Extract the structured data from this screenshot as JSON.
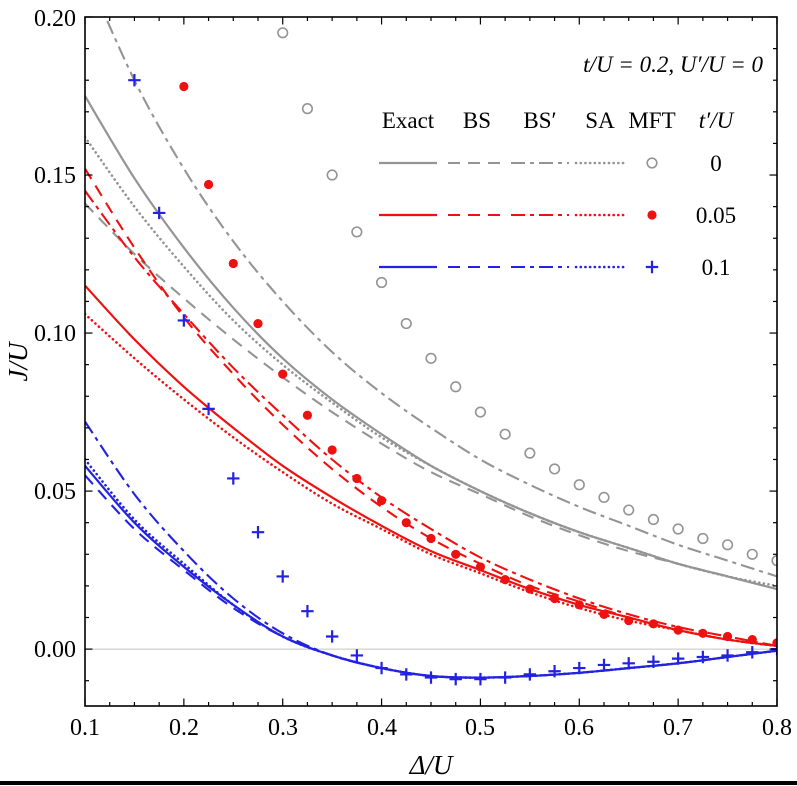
{
  "chart_data": {
    "type": "line",
    "title": "t/U = 0.2, U′/U = 0",
    "xlabel": "Δ/U",
    "ylabel": "J/U",
    "xlim": [
      0.1,
      0.8
    ],
    "ylim": [
      -0.018,
      0.2
    ],
    "xticks": [
      0.1,
      0.2,
      0.3,
      0.4,
      0.5,
      0.6,
      0.7,
      0.8
    ],
    "xticklabels": [
      "0.1",
      "0.2",
      "0.3",
      "0.4",
      "0.5",
      "0.6",
      "0.7",
      "0.8"
    ],
    "yticks": [
      0.0,
      0.05,
      0.1,
      0.15,
      0.2
    ],
    "yticklabels": [
      "0.00",
      "0.05",
      "0.10",
      "0.15",
      "0.20"
    ],
    "grid": "zero-line-only",
    "legend_position": "top-right",
    "colors": {
      "gray": "#949494",
      "red": "#ee1111",
      "blue": "#2222e0",
      "zero_line": "#c4c4c4",
      "frame": "#000000"
    },
    "x_line": [
      0.1,
      0.15,
      0.2,
      0.25,
      0.3,
      0.35,
      0.4,
      0.45,
      0.5,
      0.55,
      0.6,
      0.65,
      0.7,
      0.75,
      0.8
    ],
    "series": [
      {
        "name": "BS",
        "group": "t'/U = 0",
        "color_key": "gray",
        "style": "dashed",
        "y": [
          0.141,
          0.125,
          0.111,
          0.098,
          0.086,
          0.075,
          0.065,
          0.056,
          0.049,
          0.042,
          0.036,
          0.031,
          0.027,
          0.023,
          0.019
        ]
      },
      {
        "name": "BS'",
        "group": "t'/U = 0",
        "color_key": "gray",
        "style": "dashdot",
        "y": [
          0.215,
          0.18,
          0.152,
          0.129,
          0.11,
          0.094,
          0.081,
          0.07,
          0.06,
          0.052,
          0.045,
          0.039,
          0.033,
          0.028,
          0.023
        ]
      },
      {
        "name": "SA",
        "group": "t'/U = 0",
        "color_key": "gray",
        "style": "dotted",
        "y": [
          0.162,
          0.14,
          0.121,
          0.104,
          0.09,
          0.078,
          0.067,
          0.058,
          0.05,
          0.043,
          0.037,
          0.032,
          0.027,
          0.023,
          0.02
        ]
      },
      {
        "name": "Exact",
        "group": "t'/U = 0",
        "color_key": "gray",
        "style": "solid",
        "y": [
          0.175,
          0.149,
          0.127,
          0.108,
          0.092,
          0.079,
          0.068,
          0.058,
          0.05,
          0.043,
          0.037,
          0.032,
          0.027,
          0.023,
          0.019
        ]
      },
      {
        "name": "BS",
        "group": "t'/U = 0.05",
        "color_key": "red",
        "style": "dashed",
        "y": [
          0.152,
          0.127,
          0.105,
          0.087,
          0.071,
          0.057,
          0.045,
          0.035,
          0.027,
          0.02,
          0.015,
          0.01,
          0.006,
          0.003,
          0.001
        ]
      },
      {
        "name": "BS'",
        "group": "t'/U = 0.05",
        "color_key": "red",
        "style": "dashdot",
        "y": [
          0.145,
          0.124,
          0.106,
          0.089,
          0.074,
          0.06,
          0.048,
          0.038,
          0.029,
          0.022,
          0.016,
          0.011,
          0.007,
          0.004,
          0.001
        ]
      },
      {
        "name": "SA",
        "group": "t'/U = 0.05",
        "color_key": "red",
        "style": "dotted",
        "y": [
          0.106,
          0.092,
          0.079,
          0.067,
          0.056,
          0.046,
          0.038,
          0.03,
          0.024,
          0.018,
          0.013,
          0.009,
          0.006,
          0.003,
          0.001
        ]
      },
      {
        "name": "Exact",
        "group": "t'/U = 0.05",
        "color_key": "red",
        "style": "solid",
        "y": [
          0.115,
          0.098,
          0.083,
          0.07,
          0.058,
          0.048,
          0.039,
          0.031,
          0.025,
          0.019,
          0.014,
          0.01,
          0.006,
          0.003,
          0.001
        ]
      },
      {
        "name": "BS",
        "group": "t'/U = 0.1",
        "color_key": "blue",
        "style": "dashed",
        "y": [
          0.055,
          0.038,
          0.025,
          0.013,
          0.004,
          -0.002,
          -0.006,
          -0.0085,
          -0.009,
          -0.0085,
          -0.0075,
          -0.006,
          -0.0045,
          -0.0025,
          -0.0005
        ]
      },
      {
        "name": "BS'",
        "group": "t'/U = 0.1",
        "color_key": "blue",
        "style": "dashdot",
        "y": [
          0.072,
          0.049,
          0.031,
          0.016,
          0.005,
          -0.002,
          -0.006,
          -0.0085,
          -0.009,
          -0.0085,
          -0.0075,
          -0.006,
          -0.0045,
          -0.0025,
          -0.0005
        ]
      },
      {
        "name": "SA",
        "group": "t'/U = 0.1",
        "color_key": "blue",
        "style": "dotted",
        "y": [
          0.06,
          0.041,
          0.027,
          0.014,
          0.004,
          -0.002,
          -0.006,
          -0.0085,
          -0.009,
          -0.0085,
          -0.0075,
          -0.006,
          -0.0045,
          -0.0025,
          -0.0005
        ]
      },
      {
        "name": "Exact",
        "group": "t'/U = 0.1",
        "color_key": "blue",
        "style": "solid",
        "y": [
          0.058,
          0.04,
          0.026,
          0.014,
          0.004,
          -0.002,
          -0.006,
          -0.0085,
          -0.009,
          -0.0085,
          -0.0075,
          -0.006,
          -0.0045,
          -0.0025,
          -0.0005
        ]
      },
      {
        "name": "MFT",
        "group": "t'/U = 0",
        "color_key": "gray",
        "style": "marker",
        "marker": "open-circle",
        "x": [
          0.3,
          0.325,
          0.35,
          0.375,
          0.4,
          0.425,
          0.45,
          0.475,
          0.5,
          0.525,
          0.55,
          0.575,
          0.6,
          0.625,
          0.65,
          0.675,
          0.7,
          0.725,
          0.75,
          0.775,
          0.8
        ],
        "y": [
          0.195,
          0.171,
          0.15,
          0.132,
          0.116,
          0.103,
          0.092,
          0.083,
          0.075,
          0.068,
          0.062,
          0.057,
          0.052,
          0.048,
          0.044,
          0.041,
          0.038,
          0.035,
          0.033,
          0.03,
          0.028
        ]
      },
      {
        "name": "MFT",
        "group": "t'/U = 0.05",
        "color_key": "red",
        "style": "marker",
        "marker": "filled-circle",
        "x": [
          0.2,
          0.225,
          0.25,
          0.275,
          0.3,
          0.325,
          0.35,
          0.375,
          0.4,
          0.425,
          0.45,
          0.475,
          0.5,
          0.525,
          0.55,
          0.575,
          0.6,
          0.625,
          0.65,
          0.675,
          0.7,
          0.725,
          0.75,
          0.775,
          0.8
        ],
        "y": [
          0.178,
          0.147,
          0.122,
          0.103,
          0.087,
          0.074,
          0.063,
          0.054,
          0.047,
          0.04,
          0.035,
          0.03,
          0.026,
          0.022,
          0.019,
          0.016,
          0.014,
          0.011,
          0.009,
          0.008,
          0.006,
          0.005,
          0.004,
          0.003,
          0.002
        ]
      },
      {
        "name": "MFT",
        "group": "t'/U = 0.1",
        "color_key": "blue",
        "style": "marker",
        "marker": "plus",
        "x": [
          0.15,
          0.175,
          0.2,
          0.225,
          0.25,
          0.275,
          0.3,
          0.325,
          0.35,
          0.375,
          0.4,
          0.425,
          0.45,
          0.475,
          0.5,
          0.525,
          0.55,
          0.575,
          0.6,
          0.625,
          0.65,
          0.675,
          0.7,
          0.725,
          0.75,
          0.775,
          0.8
        ],
        "y": [
          0.18,
          0.138,
          0.104,
          0.076,
          0.054,
          0.037,
          0.023,
          0.012,
          0.004,
          -0.002,
          -0.006,
          -0.008,
          -0.009,
          -0.0095,
          -0.0095,
          -0.009,
          -0.008,
          -0.007,
          -0.006,
          -0.005,
          -0.0045,
          -0.004,
          -0.003,
          -0.0025,
          -0.002,
          -0.001,
          0.0
        ]
      }
    ],
    "legend": {
      "title": "t/U = 0.2, U′/U = 0",
      "headers": [
        "Exact",
        "BS",
        "BS′",
        "SA",
        "MFT",
        "t′/U"
      ],
      "style_columns": [
        "solid",
        "dashed",
        "dashdot",
        "dotted",
        "marker"
      ],
      "rows": [
        {
          "color_key": "gray",
          "marker": "open-circle",
          "value": "0"
        },
        {
          "color_key": "red",
          "marker": "filled-circle",
          "value": "0.05"
        },
        {
          "color_key": "blue",
          "marker": "plus",
          "value": "0.1"
        }
      ]
    }
  }
}
